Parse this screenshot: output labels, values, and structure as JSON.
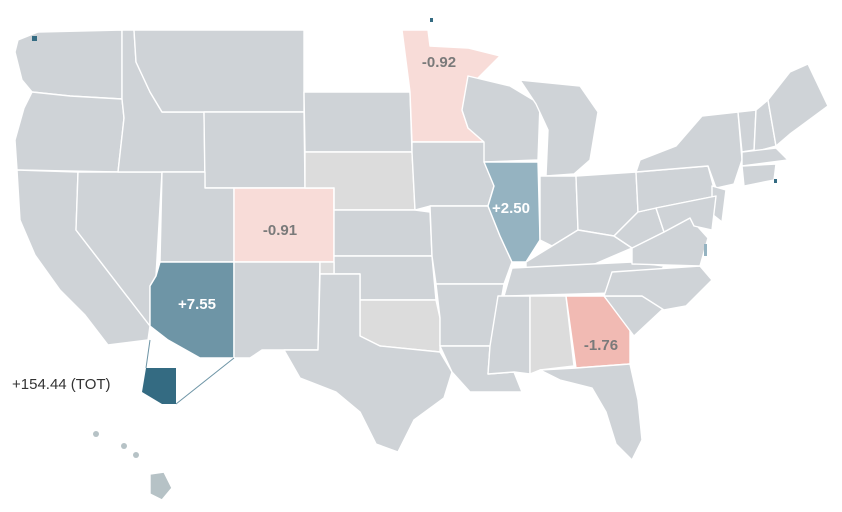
{
  "colors": {
    "base_state": "#cfd3d7",
    "neutral_state": "#dcdcdc",
    "hawaii": "#b6c2c6",
    "strong_positive": "#346b82",
    "positive": "#6e95a6",
    "light_positive": "#95b3c1",
    "light_negative": "#f8dcd8",
    "negative": "#f1bab3",
    "dark_text": "#7a7a7a",
    "light_text": "#ffffff"
  },
  "highlighted_states": [
    {
      "state": "Minnesota",
      "value": "-0.92",
      "fill": "light_negative"
    },
    {
      "state": "Colorado",
      "value": "-0.91",
      "fill": "light_negative"
    },
    {
      "state": "Arizona",
      "value": "+7.55",
      "fill": "positive"
    },
    {
      "state": "Illinois",
      "value": "+2.50",
      "fill": "light_positive"
    },
    {
      "state": "Georgia",
      "value": "-1.76",
      "fill": "negative"
    }
  ],
  "callout": {
    "state": "Arizona",
    "text": "+154.44 (TOT)",
    "fill": "strong_positive"
  }
}
